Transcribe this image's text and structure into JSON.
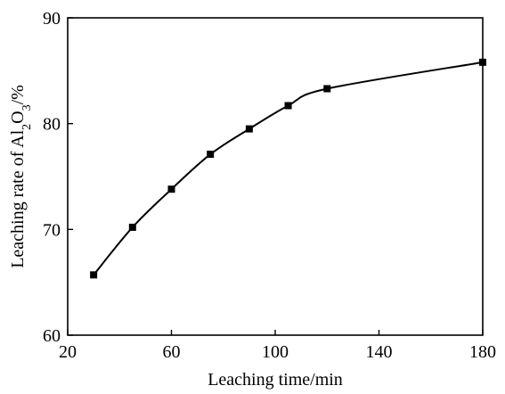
{
  "chart_data": {
    "type": "line",
    "title": "",
    "xlabel": "Leaching time/min",
    "ylabel": {
      "prefix": "Leaching rate of Al",
      "sub1": "2",
      "mid": "O",
      "sub2": "3",
      "suffix": "/%"
    },
    "xlim": [
      20,
      180
    ],
    "ylim": [
      60,
      90
    ],
    "xticks": [
      20,
      60,
      100,
      140,
      180
    ],
    "yticks": [
      60,
      70,
      80,
      90
    ],
    "grid": false,
    "series": [
      {
        "x": [
          30,
          45,
          60,
          75,
          90,
          105,
          120,
          180
        ],
        "y": [
          65.7,
          70.2,
          73.8,
          77.1,
          79.5,
          81.7,
          83.3,
          85.8
        ]
      }
    ]
  }
}
